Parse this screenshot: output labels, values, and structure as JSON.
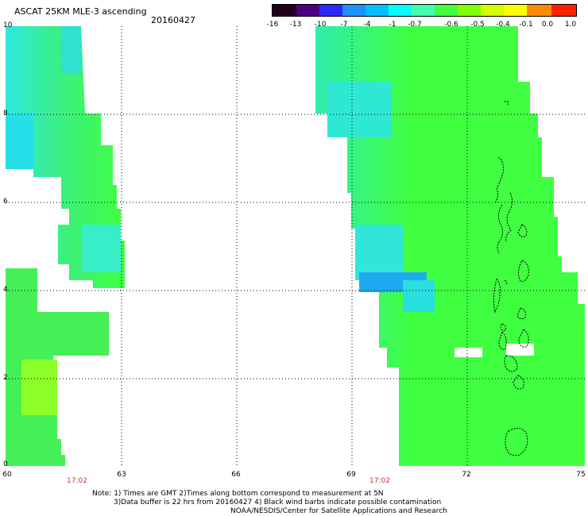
{
  "title": "ASCAT 25KM MLE-3 ascending",
  "date": "20160427",
  "colorbar": {
    "labels": [
      "-16",
      "-13",
      "-10",
      "-7",
      "-4",
      "-1",
      "-0.7",
      "-0.6",
      "-0.5",
      "-0.4",
      "-0.1",
      "0.0",
      "1.0"
    ],
    "colors": [
      "#200020",
      "#4b0082",
      "#2a2aff",
      "#1e90ff",
      "#00bfff",
      "#00ffff",
      "#40ffb0",
      "#40ff40",
      "#7fff00",
      "#d4ff00",
      "#ffff00",
      "#ff8c00",
      "#ff2000"
    ]
  },
  "axes": {
    "y_ticks": [
      "10",
      "8",
      "6",
      "4",
      "2",
      "0"
    ],
    "x_ticks": [
      "60",
      "63",
      "66",
      "69",
      "72",
      "75"
    ]
  },
  "times": {
    "left": "17:02",
    "right": "17:02"
  },
  "notes": [
    "Note: 1) Times are GMT 2)Times along bottom correspond to measurement at 5N",
    "3)Data buffer is 22 hrs from 20160427 4) Black wind barbs indicate possible contamination",
    "NOAA/NESDIS/Center for Satellite Applications and Research"
  ]
}
